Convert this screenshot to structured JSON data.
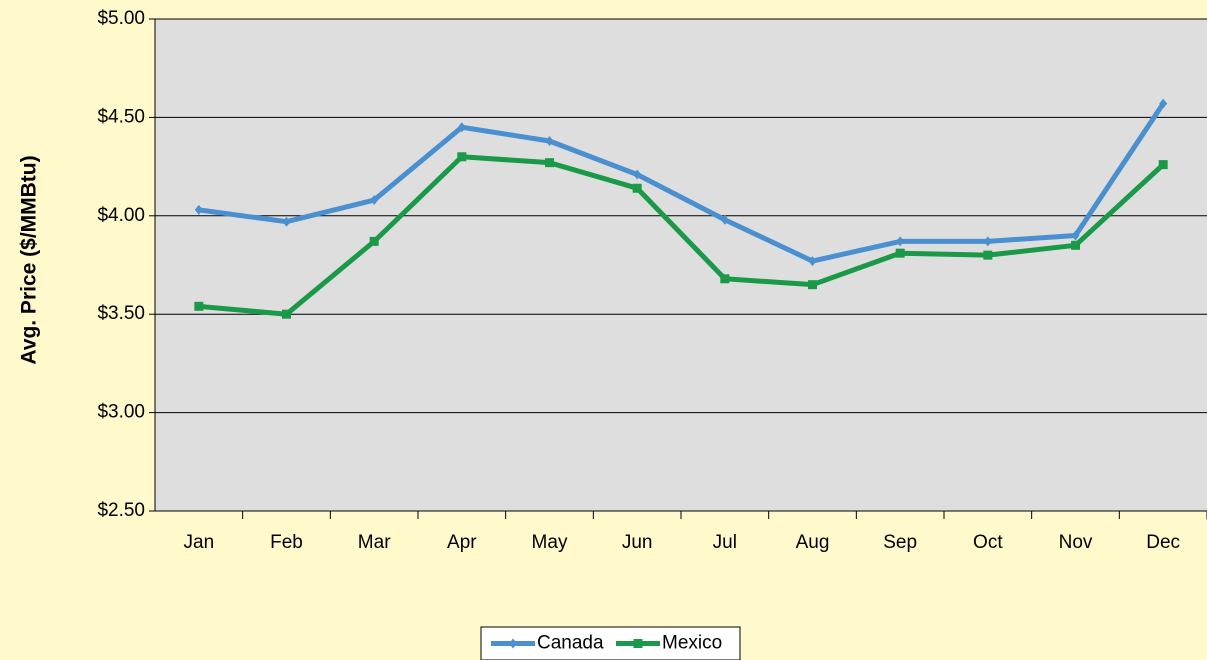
{
  "chart_data": {
    "type": "line",
    "ylabel": "Avg. Price ($/MMBtu)",
    "categories": [
      "Jan",
      "Feb",
      "Mar",
      "Apr",
      "May",
      "Jun",
      "Jul",
      "Aug",
      "Sep",
      "Oct",
      "Nov",
      "Dec"
    ],
    "series": [
      {
        "name": "Canada",
        "color": "#4a8fd0",
        "marker": "diamond",
        "values": [
          4.03,
          3.97,
          4.08,
          4.45,
          4.38,
          4.21,
          3.98,
          3.77,
          3.87,
          3.87,
          3.9,
          4.57
        ]
      },
      {
        "name": "Mexico",
        "color": "#1a9a48",
        "marker": "square",
        "values": [
          3.54,
          3.5,
          3.87,
          4.3,
          4.27,
          4.14,
          3.68,
          3.65,
          3.81,
          3.8,
          3.85,
          4.26
        ]
      }
    ],
    "ylim": [
      2.5,
      5.0
    ],
    "yticks": [
      {
        "value": 2.5,
        "label": "$2.50"
      },
      {
        "value": 3.0,
        "label": "$3.00"
      },
      {
        "value": 3.5,
        "label": "$3.50"
      },
      {
        "value": 4.0,
        "label": "$4.00"
      },
      {
        "value": 4.5,
        "label": "$4.50"
      },
      {
        "value": 5.0,
        "label": "$5.00"
      }
    ],
    "grid": true,
    "legend": "bottom"
  }
}
